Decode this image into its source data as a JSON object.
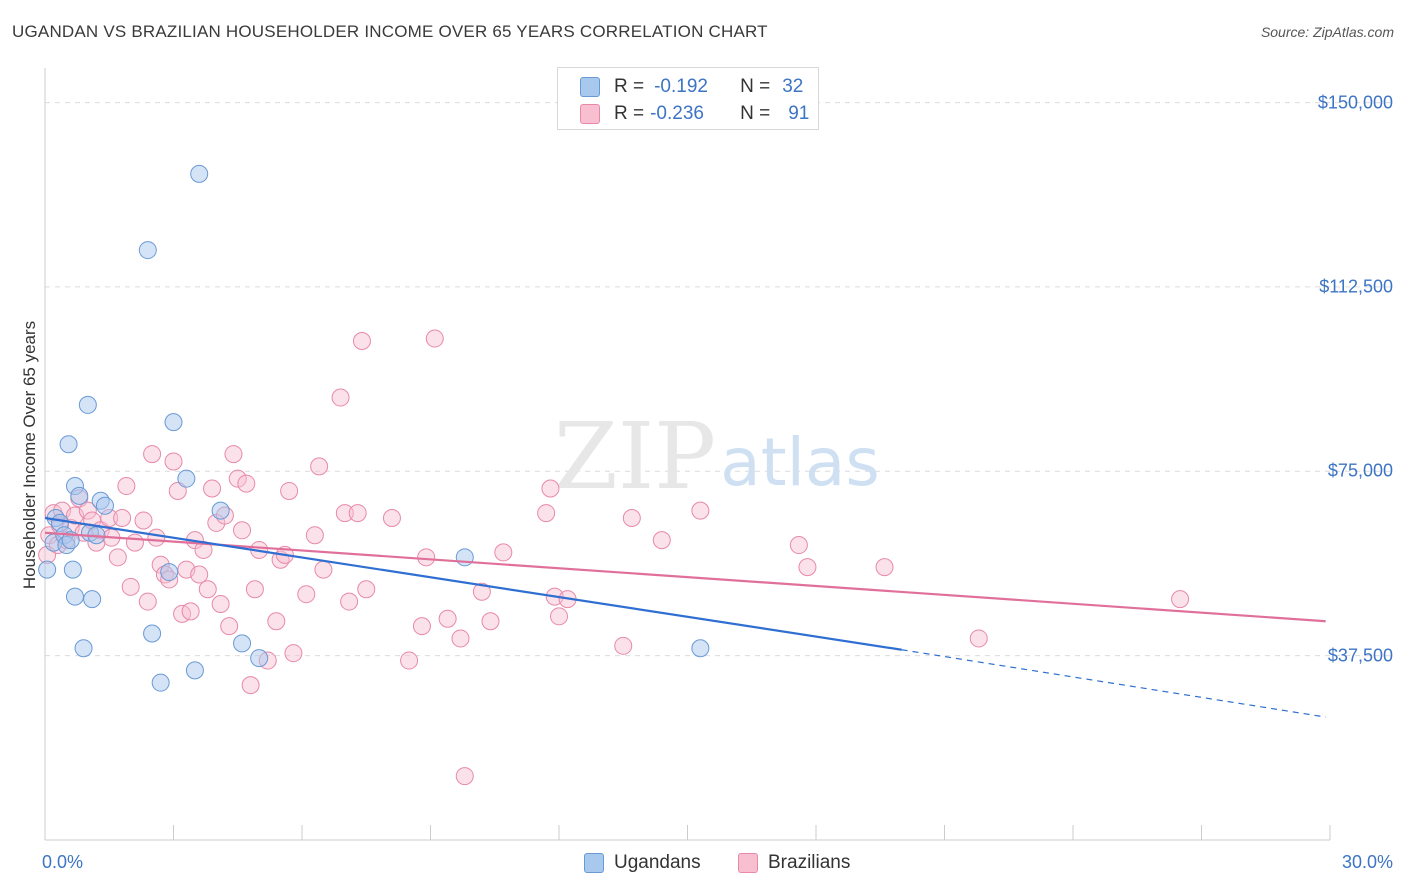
{
  "title": "UGANDAN VS BRAZILIAN HOUSEHOLDER INCOME OVER 65 YEARS CORRELATION CHART",
  "source": "Source: ZipAtlas.com",
  "watermark": {
    "zip": "ZIP",
    "atlas": "atlas"
  },
  "legend_top": [
    {
      "r_label": "R =",
      "r_value": "-0.192",
      "n_label": "N =",
      "n_value": "32"
    },
    {
      "r_label": "R =",
      "r_value": "-0.236",
      "n_label": "N =",
      "n_value": "91"
    }
  ],
  "legend_bottom": [
    "Ugandans",
    "Brazilians"
  ],
  "colors": {
    "ugandans_fill": "#a9c8ee",
    "ugandans_stroke": "#6a9ad6",
    "ugandans_line": "#2f6fd2",
    "brazilians_fill": "#f7bfd0",
    "brazilians_stroke": "#e889a9",
    "brazilians_line": "#e0709a",
    "tick_text": "#3d74c5",
    "grid": "#dcdcdc"
  },
  "chart_data": {
    "type": "scatter",
    "title": "UGANDAN VS BRAZILIAN HOUSEHOLDER INCOME OVER 65 YEARS CORRELATION CHART",
    "xlabel": "",
    "ylabel": "Householder Income Over 65 years",
    "xlim": [
      0,
      30
    ],
    "ylim": [
      0,
      155000
    ],
    "x_tick_labels": [
      "0.0%",
      "30.0%"
    ],
    "y_ticks": [
      37500,
      75000,
      112500,
      150000
    ],
    "y_tick_labels": [
      "$37,500",
      "$75,000",
      "$112,500",
      "$150,000"
    ],
    "grid": true,
    "series": [
      {
        "name": "Ugandans",
        "r": -0.192,
        "n": 32,
        "points": [
          [
            0.05,
            55000
          ],
          [
            0.2,
            60500
          ],
          [
            0.25,
            65500
          ],
          [
            0.35,
            64500
          ],
          [
            0.45,
            62000
          ],
          [
            0.5,
            60000
          ],
          [
            0.55,
            80500
          ],
          [
            0.6,
            61000
          ],
          [
            0.65,
            55000
          ],
          [
            0.7,
            49500
          ],
          [
            0.7,
            72000
          ],
          [
            0.8,
            70000
          ],
          [
            0.9,
            39000
          ],
          [
            1.0,
            88500
          ],
          [
            1.05,
            62500
          ],
          [
            1.1,
            49000
          ],
          [
            1.2,
            62000
          ],
          [
            1.3,
            69000
          ],
          [
            1.4,
            68000
          ],
          [
            2.4,
            120000
          ],
          [
            2.5,
            42000
          ],
          [
            2.7,
            32000
          ],
          [
            2.9,
            54500
          ],
          [
            3.0,
            85000
          ],
          [
            3.3,
            73500
          ],
          [
            3.5,
            34500
          ],
          [
            3.6,
            135500
          ],
          [
            4.1,
            67000
          ],
          [
            4.6,
            40000
          ],
          [
            5.0,
            37000
          ],
          [
            9.8,
            57500
          ],
          [
            15.3,
            39000
          ]
        ],
        "trend": {
          "x0": 0,
          "y0": 65500,
          "x1": 20.0,
          "y1": 38700,
          "dash_x1": 29.9,
          "dash_y1": 25000
        }
      },
      {
        "name": "Brazilians",
        "r": -0.236,
        "n": 91,
        "points": [
          [
            0.05,
            58000
          ],
          [
            0.1,
            62000
          ],
          [
            0.2,
            66500
          ],
          [
            0.3,
            60000
          ],
          [
            0.35,
            64000
          ],
          [
            0.4,
            67000
          ],
          [
            0.5,
            61000
          ],
          [
            0.6,
            63500
          ],
          [
            0.7,
            66000
          ],
          [
            0.8,
            69500
          ],
          [
            0.9,
            62500
          ],
          [
            1.0,
            67000
          ],
          [
            1.1,
            65000
          ],
          [
            1.2,
            60500
          ],
          [
            1.3,
            63000
          ],
          [
            1.5,
            65500
          ],
          [
            1.55,
            61500
          ],
          [
            1.7,
            57500
          ],
          [
            1.8,
            65500
          ],
          [
            1.9,
            72000
          ],
          [
            2.0,
            51500
          ],
          [
            2.1,
            60500
          ],
          [
            2.3,
            65000
          ],
          [
            2.4,
            48500
          ],
          [
            2.5,
            78500
          ],
          [
            2.6,
            61500
          ],
          [
            2.7,
            56000
          ],
          [
            2.8,
            54000
          ],
          [
            2.9,
            53000
          ],
          [
            3.0,
            77000
          ],
          [
            3.1,
            71000
          ],
          [
            3.2,
            46000
          ],
          [
            3.3,
            55000
          ],
          [
            3.4,
            46500
          ],
          [
            3.5,
            61000
          ],
          [
            3.6,
            54000
          ],
          [
            3.7,
            59000
          ],
          [
            3.8,
            51000
          ],
          [
            3.9,
            71500
          ],
          [
            4.0,
            64500
          ],
          [
            4.1,
            48000
          ],
          [
            4.2,
            66000
          ],
          [
            4.3,
            43500
          ],
          [
            4.4,
            78500
          ],
          [
            4.5,
            73500
          ],
          [
            4.6,
            63000
          ],
          [
            4.7,
            72500
          ],
          [
            4.8,
            31500
          ],
          [
            4.9,
            51000
          ],
          [
            5.0,
            59000
          ],
          [
            5.2,
            36500
          ],
          [
            5.4,
            44500
          ],
          [
            5.5,
            57000
          ],
          [
            5.6,
            58000
          ],
          [
            5.7,
            71000
          ],
          [
            5.8,
            38000
          ],
          [
            6.1,
            50000
          ],
          [
            6.3,
            62000
          ],
          [
            6.4,
            76000
          ],
          [
            6.5,
            55000
          ],
          [
            6.9,
            90000
          ],
          [
            7.0,
            66500
          ],
          [
            7.1,
            48500
          ],
          [
            7.3,
            66500
          ],
          [
            7.4,
            101500
          ],
          [
            7.5,
            51000
          ],
          [
            8.1,
            65500
          ],
          [
            8.5,
            36500
          ],
          [
            8.8,
            43500
          ],
          [
            8.9,
            57500
          ],
          [
            9.1,
            102000
          ],
          [
            9.4,
            45000
          ],
          [
            9.7,
            41000
          ],
          [
            9.8,
            13000
          ],
          [
            10.2,
            50500
          ],
          [
            10.4,
            44500
          ],
          [
            10.7,
            58500
          ],
          [
            11.7,
            66500
          ],
          [
            11.8,
            71500
          ],
          [
            11.9,
            49500
          ],
          [
            12.0,
            45500
          ],
          [
            12.2,
            49000
          ],
          [
            13.5,
            39500
          ],
          [
            13.7,
            65500
          ],
          [
            14.4,
            61000
          ],
          [
            15.3,
            67000
          ],
          [
            17.6,
            60000
          ],
          [
            17.8,
            55500
          ],
          [
            19.6,
            55500
          ],
          [
            21.8,
            41000
          ],
          [
            26.5,
            49000
          ]
        ],
        "trend": {
          "x0": 0,
          "y0": 62500,
          "x1": 29.9,
          "y1": 44500
        }
      }
    ]
  }
}
